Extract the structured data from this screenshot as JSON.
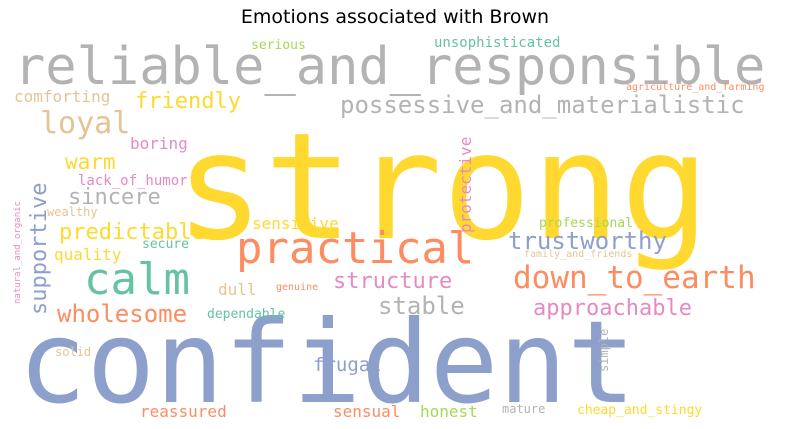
{
  "title": "Emotions associated with Brown",
  "palette": {
    "yellow": "#FFD92F",
    "blue": "#8DA0CB",
    "orange": "#FC8D62",
    "teal": "#66C2A5",
    "pink": "#E78AC3",
    "gray": "#B3B3B3",
    "tan": "#E5C494",
    "green": "#A6D854"
  },
  "words": [
    {
      "text": "strong",
      "color": "yellow"
    },
    {
      "text": "confident",
      "color": "blue"
    },
    {
      "text": "reliable_and_responsible",
      "color": "gray"
    },
    {
      "text": "practical",
      "color": "orange"
    },
    {
      "text": "calm",
      "color": "teal"
    },
    {
      "text": "loyal",
      "color": "tan"
    },
    {
      "text": "friendly",
      "color": "yellow"
    },
    {
      "text": "possessive_and_materialistic",
      "color": "gray"
    },
    {
      "text": "down_to_earth",
      "color": "orange"
    },
    {
      "text": "trustworthy",
      "color": "blue"
    },
    {
      "text": "structure",
      "color": "pink"
    },
    {
      "text": "approachable",
      "color": "pink"
    },
    {
      "text": "stable",
      "color": "gray"
    },
    {
      "text": "wholesome",
      "color": "orange"
    },
    {
      "text": "predictable",
      "color": "yellow"
    },
    {
      "text": "supportive",
      "color": "blue"
    },
    {
      "text": "sincere",
      "color": "gray"
    },
    {
      "text": "warm",
      "color": "yellow"
    },
    {
      "text": "comforting",
      "color": "tan"
    },
    {
      "text": "boring",
      "color": "pink"
    },
    {
      "text": "quality",
      "color": "yellow"
    },
    {
      "text": "sensitive",
      "color": "yellow"
    },
    {
      "text": "protective",
      "color": "pink"
    },
    {
      "text": "frugal",
      "color": "blue"
    },
    {
      "text": "reassured",
      "color": "orange"
    },
    {
      "text": "sensual",
      "color": "orange"
    },
    {
      "text": "honest",
      "color": "green"
    },
    {
      "text": "dull",
      "color": "tan"
    },
    {
      "text": "dependable",
      "color": "teal"
    },
    {
      "text": "lack_of_humor",
      "color": "pink"
    },
    {
      "text": "unsophisticated",
      "color": "teal"
    },
    {
      "text": "serious",
      "color": "green"
    },
    {
      "text": "professional",
      "color": "green"
    },
    {
      "text": "secure",
      "color": "teal"
    },
    {
      "text": "cheap_and_stingy",
      "color": "yellow"
    },
    {
      "text": "mature",
      "color": "gray"
    },
    {
      "text": "simple",
      "color": "gray"
    },
    {
      "text": "solid",
      "color": "tan"
    },
    {
      "text": "wealthy",
      "color": "tan"
    },
    {
      "text": "genuine",
      "color": "orange"
    },
    {
      "text": "family_and_friends",
      "color": "tan"
    },
    {
      "text": "agriculture_and_farming",
      "color": "orange"
    },
    {
      "text": "natural_and_organic",
      "color": "pink"
    }
  ]
}
